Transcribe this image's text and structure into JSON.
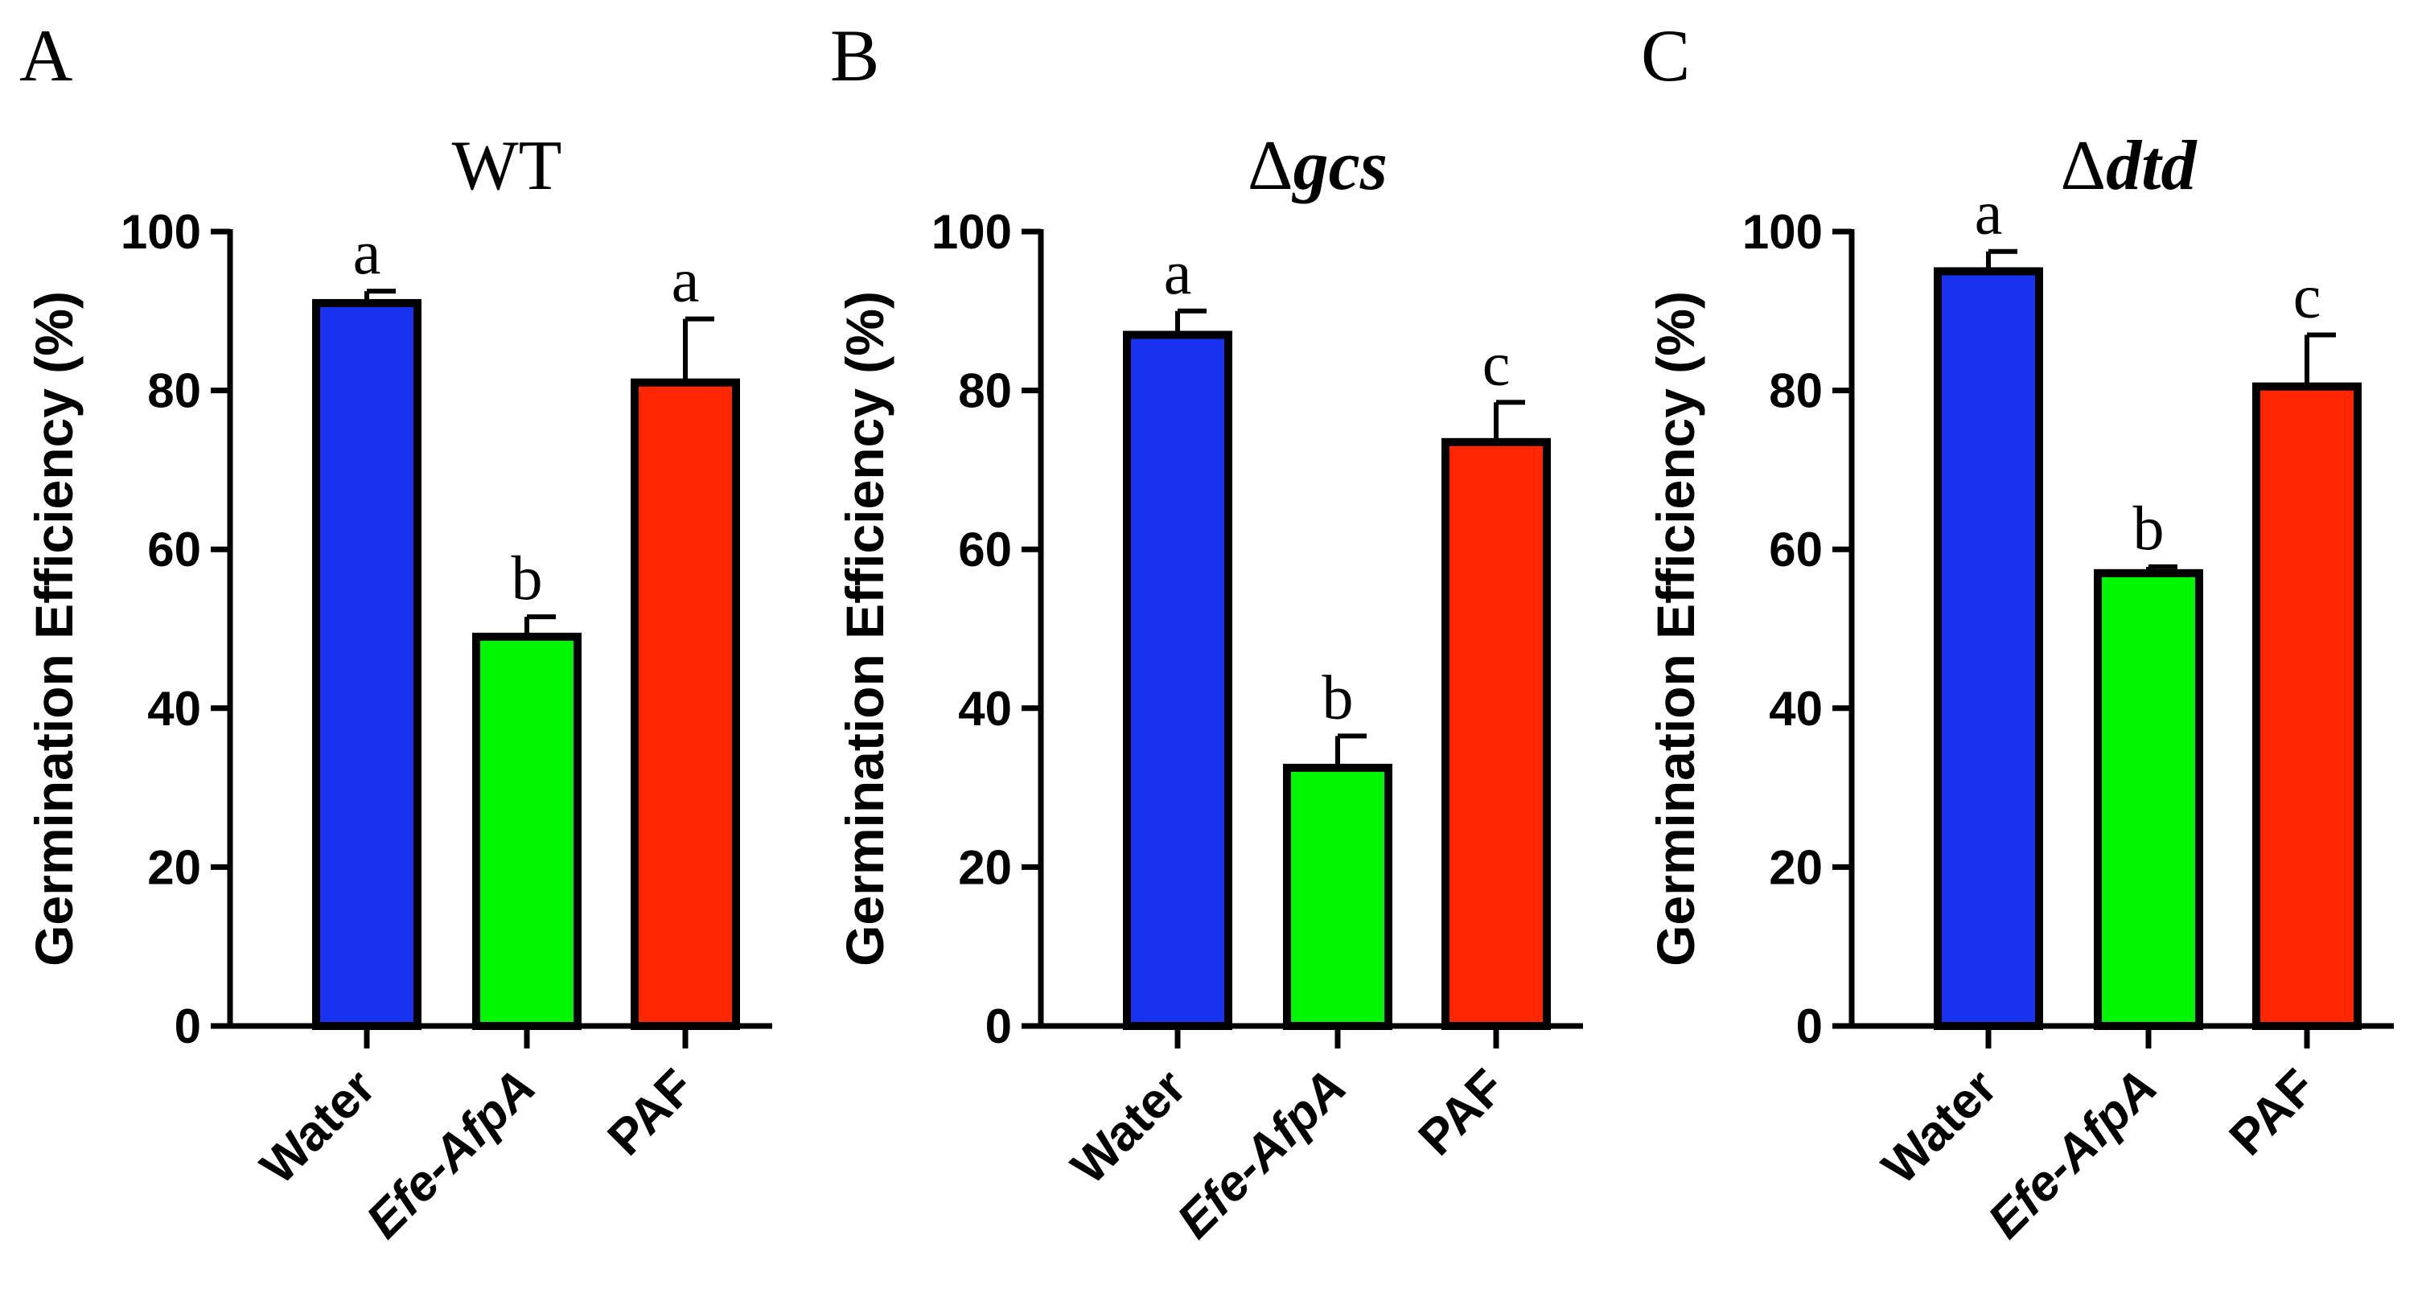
{
  "chart_data": [
    {
      "type": "bar",
      "panel_label": "A",
      "title": "WT",
      "title_prefix": "",
      "title_italic": false,
      "xlabel": "",
      "ylabel": "Germination Efficiency (%)",
      "ylim": [
        0,
        100
      ],
      "yticks": [
        0,
        20,
        40,
        60,
        80,
        100
      ],
      "categories": [
        "Water",
        "Efe-AfpA",
        "PAF"
      ],
      "italic_categories": [
        "Efe-AfpA"
      ],
      "values": [
        91,
        49,
        81
      ],
      "errors": [
        1.5,
        2.5,
        8
      ],
      "significance": [
        "a",
        "b",
        "a"
      ],
      "colors": [
        "#1733f0",
        "#00f500",
        "#ff2600"
      ]
    },
    {
      "type": "bar",
      "panel_label": "B",
      "title": "gcs",
      "title_prefix": "Δ",
      "title_italic": true,
      "xlabel": "",
      "ylabel": "Germination Efficiency (%)",
      "ylim": [
        0,
        100
      ],
      "yticks": [
        0,
        20,
        40,
        60,
        80,
        100
      ],
      "categories": [
        "Water",
        "Efe-AfpA",
        "PAF"
      ],
      "italic_categories": [
        "Efe-AfpA"
      ],
      "values": [
        87,
        32.5,
        73.5
      ],
      "errors": [
        3,
        4,
        5
      ],
      "significance": [
        "a",
        "b",
        "c"
      ],
      "colors": [
        "#1733f0",
        "#00f500",
        "#ff2600"
      ]
    },
    {
      "type": "bar",
      "panel_label": "C",
      "title": "dtd",
      "title_prefix": "Δ",
      "title_italic": true,
      "xlabel": "",
      "ylabel": "Germination Efficiency (%)",
      "ylim": [
        0,
        100
      ],
      "yticks": [
        0,
        20,
        40,
        60,
        80,
        100
      ],
      "categories": [
        "Water",
        "Efe-AfpA",
        "PAF"
      ],
      "italic_categories": [
        "Efe-AfpA"
      ],
      "values": [
        95,
        57,
        80.5
      ],
      "errors": [
        2.5,
        0.8,
        6.5
      ],
      "significance": [
        "a",
        "b",
        "c"
      ],
      "colors": [
        "#1733f0",
        "#00f500",
        "#ff2600"
      ]
    }
  ]
}
